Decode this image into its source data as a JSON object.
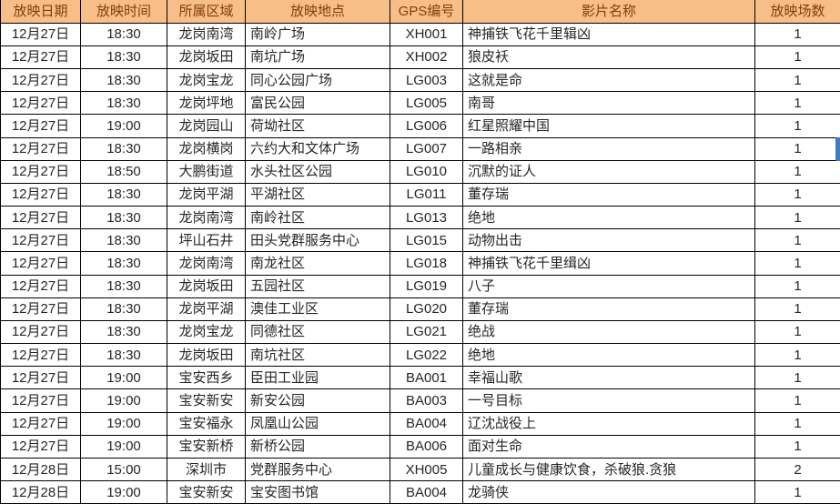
{
  "colors": {
    "header_bg": "#F7BE87",
    "header_text": "#843C0C",
    "grid_line": "#000000",
    "body_text": "#262626",
    "selection": "#3C7DC4"
  },
  "table": {
    "columns": [
      {
        "label": "放映日期"
      },
      {
        "label": "放映时间"
      },
      {
        "label": "所属区域"
      },
      {
        "label": "放映地点"
      },
      {
        "label": "GPS编号"
      },
      {
        "label": "影片名称"
      },
      {
        "label": "放映场数"
      }
    ],
    "rows": [
      [
        "12月27日",
        "18:30",
        "龙岗南湾",
        "南岭广场",
        "XH001",
        "神捕铁飞花千里辑凶",
        "1"
      ],
      [
        "12月27日",
        "18:30",
        "龙岗坂田",
        "南坑广场",
        "XH002",
        "狼皮袄",
        "1"
      ],
      [
        "12月27日",
        "18:30",
        "龙岗宝龙",
        "同心公园广场",
        "LG003",
        "这就是命",
        "1"
      ],
      [
        "12月27日",
        "18:30",
        "龙岗坪地",
        "富民公园",
        "LG005",
        "南哥",
        "1"
      ],
      [
        "12月27日",
        "19:00",
        "龙岗园山",
        "荷坳社区",
        "LG006",
        "红星照耀中国",
        "1"
      ],
      [
        "12月27日",
        "18:30",
        "龙岗横岗",
        "六约大和文体广场",
        "LG007",
        "一路相亲",
        "1"
      ],
      [
        "12月27日",
        "18:50",
        "大鹏街道",
        "水头社区公园",
        "LG010",
        "沉默的证人",
        "1"
      ],
      [
        "12月27日",
        "18:30",
        "龙岗平湖",
        "平湖社区",
        "LG011",
        "董存瑞",
        "1"
      ],
      [
        "12月27日",
        "18:30",
        "龙岗南湾",
        "南岭社区",
        "LG013",
        "绝地",
        "1"
      ],
      [
        "12月27日",
        "18:30",
        "坪山石井",
        "田头党群服务中心",
        "LG015",
        "动物出击",
        "1"
      ],
      [
        "12月27日",
        "18:30",
        "龙岗南湾",
        "南龙社区",
        "LG018",
        "神捕铁飞花千里缉凶",
        "1"
      ],
      [
        "12月27日",
        "18:30",
        "龙岗坂田",
        "五园社区",
        "LG019",
        "八子",
        "1"
      ],
      [
        "12月27日",
        "18:30",
        "龙岗平湖",
        "澳佳工业区",
        "LG020",
        "董存瑞",
        "1"
      ],
      [
        "12月27日",
        "18:30",
        "龙岗宝龙",
        "同德社区",
        "LG021",
        "绝战",
        "1"
      ],
      [
        "12月27日",
        "18:30",
        "龙岗坂田",
        "南坑社区",
        "LG022",
        "绝地",
        "1"
      ],
      [
        "12月27日",
        "19:00",
        "宝安西乡",
        "臣田工业园",
        "BA001",
        "幸福山歌",
        "1"
      ],
      [
        "12月27日",
        "19:00",
        "宝安新安",
        "新安公园",
        "BA003",
        "一号目标",
        "1"
      ],
      [
        "12月27日",
        "19:00",
        "宝安福永",
        "凤凰山公园",
        "BA004",
        "辽沈战役上",
        "1"
      ],
      [
        "12月27日",
        "19:00",
        "宝安新桥",
        "新桥公园",
        "BA006",
        "面对生命",
        "1"
      ],
      [
        "12月28日",
        "15:00",
        "深圳市",
        "党群服务中心",
        "XH005",
        "儿童成长与健康饮食，杀破狼.贪狼",
        "2"
      ],
      [
        "12月28日",
        "19:00",
        "宝安新安",
        "宝安图书馆",
        "BA004",
        "龙骑侠",
        "1"
      ]
    ]
  }
}
